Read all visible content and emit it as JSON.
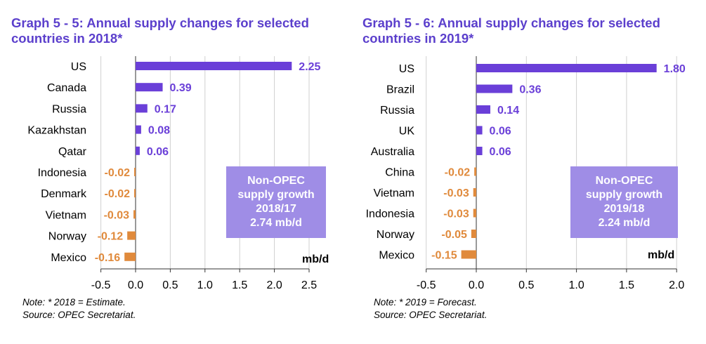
{
  "colors": {
    "positive": "#6a3fd8",
    "negative": "#e08a3c",
    "title": "#5b3fcc",
    "callout_bg": "#9f8de6"
  },
  "panels": [
    {
      "title_line1": "Graph 5 - 5: Annual supply changes for selected",
      "title_line2": "countries in 2018*",
      "callout": [
        "Non-OPEC",
        "supply growth",
        "2018/17",
        "2.74 mb/d"
      ],
      "unit": "mb/d",
      "note": "Note: * 2018 = Estimate.",
      "source": "Source: OPEC Secretariat."
    },
    {
      "title_line1": "Graph 5 - 6: Annual supply changes for selected",
      "title_line2": "countries in 2019*",
      "callout": [
        "Non-OPEC",
        "supply growth",
        "2019/18",
        "2.24 mb/d"
      ],
      "unit": "mb/d",
      "note": "Note: * 2019 = Forecast.",
      "source": "Source: OPEC Secretariat."
    }
  ],
  "chart_data": [
    {
      "type": "bar",
      "orientation": "horizontal",
      "title": "Graph 5 - 5: Annual supply changes for selected countries in 2018*",
      "categories": [
        "US",
        "Canada",
        "Russia",
        "Kazakhstan",
        "Qatar",
        "Indonesia",
        "Denmark",
        "Vietnam",
        "Norway",
        "Mexico"
      ],
      "values": [
        2.25,
        0.39,
        0.17,
        0.08,
        0.06,
        -0.02,
        -0.02,
        -0.03,
        -0.12,
        -0.16
      ],
      "value_labels": [
        "2.25",
        "0.39",
        "0.17",
        "0.08",
        "0.06",
        "-0.02",
        "-0.02",
        "-0.03",
        "-0.12",
        "-0.16"
      ],
      "xlabel": "mb/d",
      "xlim": [
        -0.5,
        2.5
      ],
      "xticks": [
        "-0.5",
        "0.0",
        "0.5",
        "1.0",
        "1.5",
        "2.0",
        "2.5"
      ],
      "grid": true
    },
    {
      "type": "bar",
      "orientation": "horizontal",
      "title": "Graph 5 - 6: Annual supply changes for selected countries in 2019*",
      "categories": [
        "US",
        "Brazil",
        "Russia",
        "UK",
        "Australia",
        "China",
        "Vietnam",
        "Indonesia",
        "Norway",
        "Mexico"
      ],
      "values": [
        1.8,
        0.36,
        0.14,
        0.06,
        0.06,
        -0.02,
        -0.03,
        -0.03,
        -0.05,
        -0.15
      ],
      "value_labels": [
        "1.80",
        "0.36",
        "0.14",
        "0.06",
        "0.06",
        "-0.02",
        "-0.03",
        "-0.03",
        "-0.05",
        "-0.15"
      ],
      "xlabel": "mb/d",
      "xlim": [
        -0.5,
        2.0
      ],
      "xticks": [
        "-0.5",
        "0.0",
        "0.5",
        "1.0",
        "1.5",
        "2.0"
      ],
      "grid": true
    }
  ]
}
